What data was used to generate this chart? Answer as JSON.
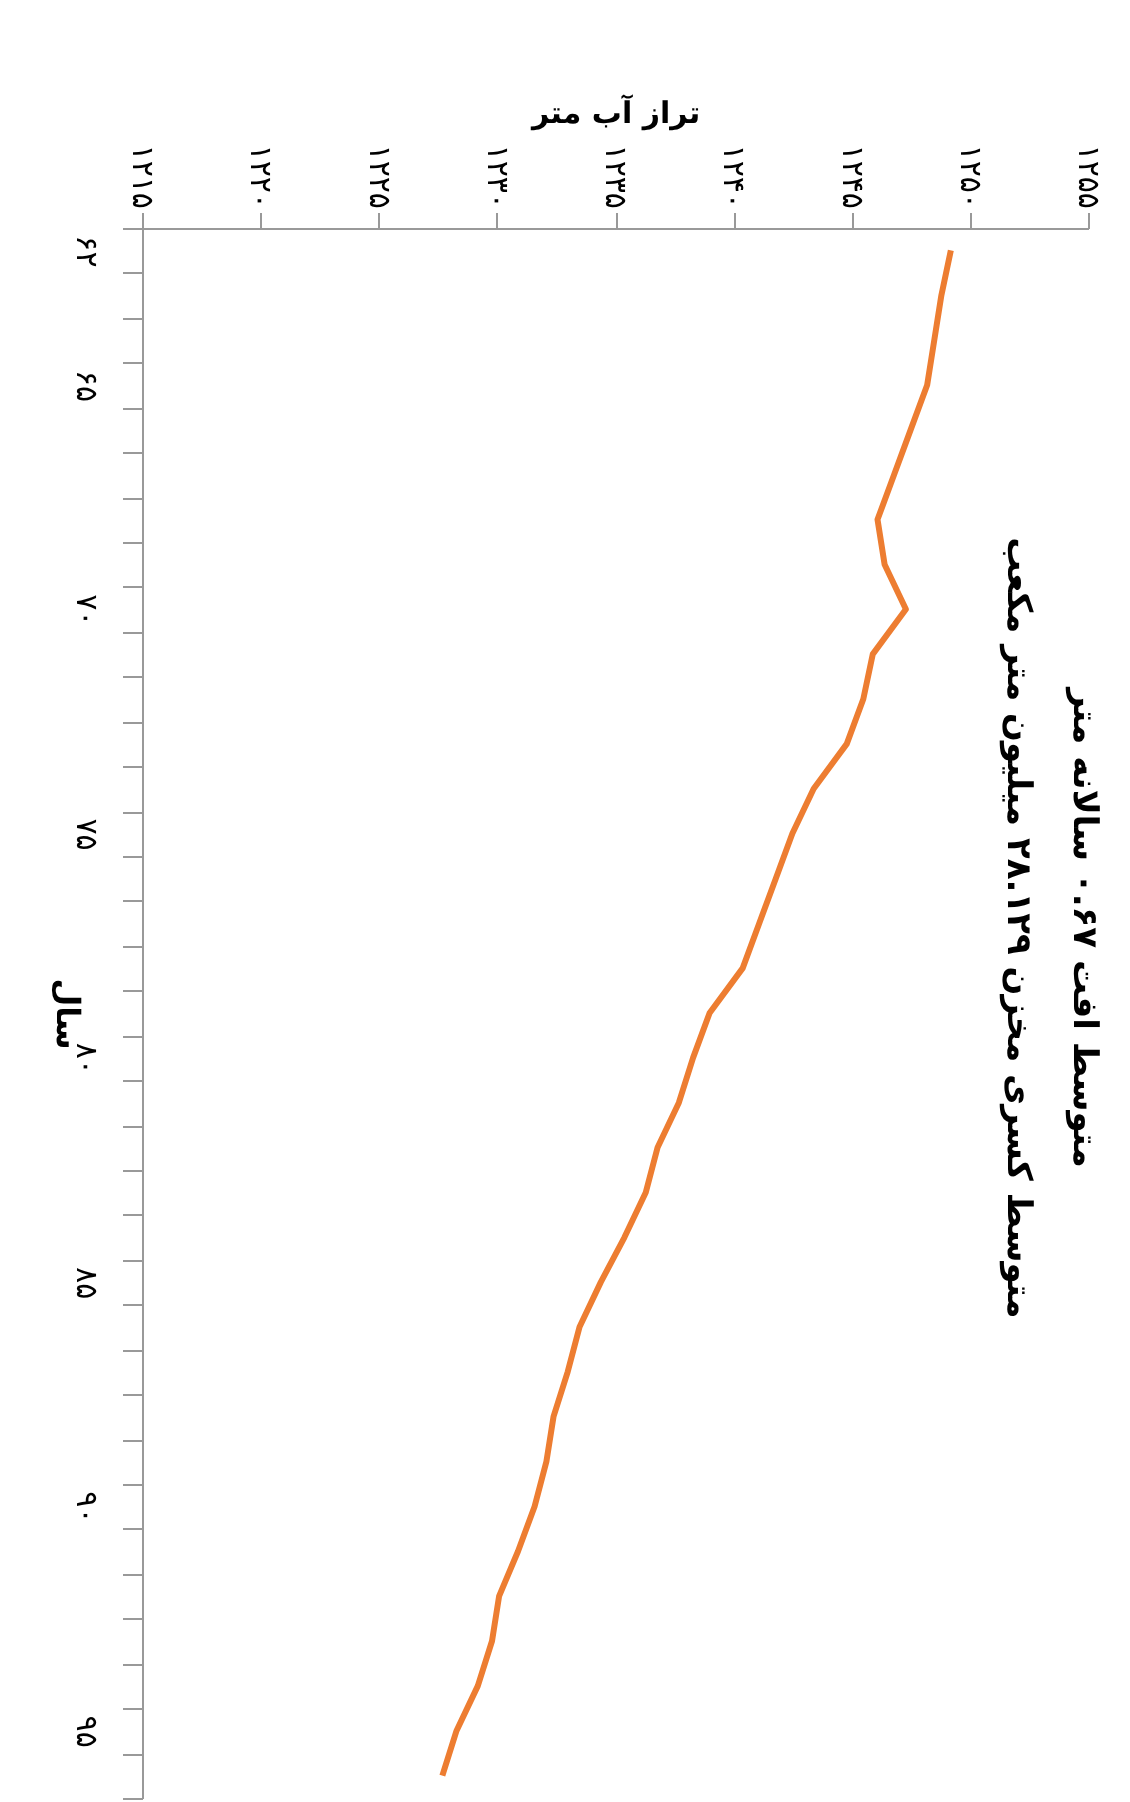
{
  "chart_data": {
    "type": "line",
    "title": "متوسط افت ۰.۶۷ سالانه متر",
    "subtitle": "متوسط کسری مخزن ۲۸.۱۲۹ میلیون متر مکعب",
    "orientation": "horizontal",
    "ylabel": "سال",
    "xlabel": "تراز آب متر",
    "categories": [
      "۶۲",
      null,
      null,
      "۶۵",
      null,
      null,
      null,
      null,
      "۷۰",
      null,
      null,
      null,
      null,
      "۷۵",
      null,
      null,
      null,
      null,
      "۸۰",
      null,
      null,
      null,
      null,
      "۸۵",
      null,
      null,
      null,
      null,
      "۹۰",
      null,
      null,
      null,
      null,
      "۹۵",
      null
    ],
    "series": [
      {
        "color": "#ed7d31",
        "values": [
          1249.2,
          1248.8,
          1248.5,
          1248.2,
          1247.5,
          1246.8,
          1246.1,
          1246.4,
          1247.3,
          1245.9,
          1245.5,
          1244.8,
          1243.4,
          1242.5,
          1241.8,
          1241.1,
          1240.4,
          1239.0,
          1238.3,
          1237.7,
          1236.8,
          1236.3,
          1235.4,
          1234.4,
          1233.5,
          1233.0,
          1232.4,
          1232.1,
          1231.6,
          1230.9,
          1230.1,
          1229.8,
          1229.2,
          1228.3,
          1227.7
        ]
      }
    ],
    "xlim": [
      1215,
      1255
    ],
    "xticks": [
      {
        "value": 1215,
        "label": "۱۲۱۵"
      },
      {
        "value": 1220,
        "label": "۱۲۲۰"
      },
      {
        "value": 1225,
        "label": "۱۲۲۵"
      },
      {
        "value": 1230,
        "label": "۱۲۳۰"
      },
      {
        "value": 1235,
        "label": "۱۲۳۵"
      },
      {
        "value": 1240,
        "label": "۱۲۴۰"
      },
      {
        "value": 1245,
        "label": "۱۲۴۵"
      },
      {
        "value": 1250,
        "label": "۱۲۵۰"
      },
      {
        "value": 1255,
        "label": "۱۲۵۵"
      }
    ],
    "grid": false,
    "legend": false,
    "marker": "none",
    "line_style": "solid"
  }
}
